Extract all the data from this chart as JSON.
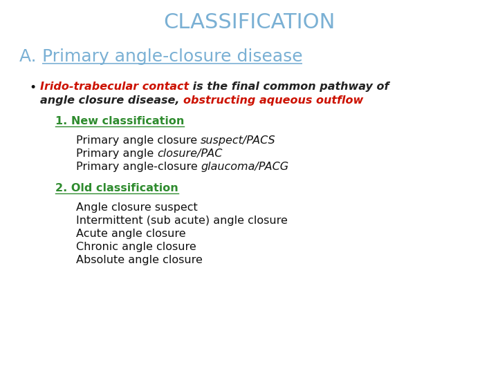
{
  "title": "CLASSIFICATION",
  "title_color": "#7ab0d4",
  "title_fontsize": 22,
  "bg_color": "#ffffff",
  "section_a_prefix": "A. ",
  "section_a_text": "Primary angle-closure disease",
  "section_a_color": "#7ab0d4",
  "section_a_fontsize": 18,
  "new_class_label": "1. New classification",
  "new_class_color": "#2e8b2e",
  "new_class_items": [
    [
      "Primary angle closure ",
      "suspect/PACS"
    ],
    [
      "Primary angle ",
      "closure/PAC"
    ],
    [
      "Primary angle-closure ",
      "glaucoma/PACG"
    ]
  ],
  "old_class_label": "2. Old classification",
  "old_class_color": "#2e8b2e",
  "old_class_items": [
    "Angle closure suspect",
    "Intermittent (sub acute) angle closure",
    "Acute angle closure",
    "Chronic angle closure",
    "Absolute angle closure"
  ],
  "item_color": "#111111",
  "body_fontsize": 11.5,
  "red_color": "#cc1100",
  "dark_color": "#222222"
}
